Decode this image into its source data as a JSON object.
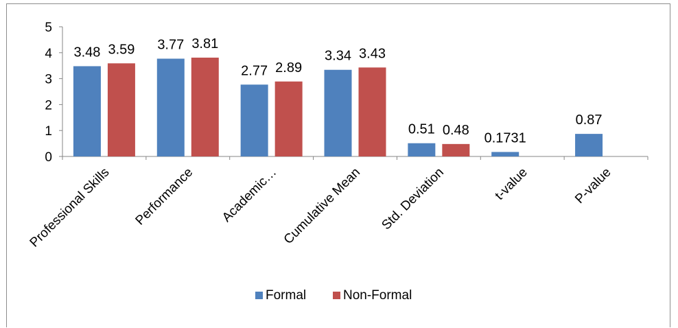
{
  "chart_data": {
    "type": "bar",
    "title": "",
    "xlabel": "",
    "ylabel": "",
    "ylim": [
      0,
      5
    ],
    "yticks": [
      0,
      1,
      2,
      3,
      4,
      5
    ],
    "ytick_labels": [
      "0",
      "1",
      "2",
      "3",
      "4",
      "5"
    ],
    "grid": false,
    "legend_position": "bottom",
    "categories": [
      "Professional Skills",
      "Performance",
      "Academic…",
      "Cumulative Mean",
      "Std. Deviation",
      "t-value",
      "P-value"
    ],
    "series": [
      {
        "name": "Formal",
        "color": "#4f81bd",
        "values": [
          3.48,
          3.77,
          2.77,
          3.34,
          0.51,
          0.1731,
          0.87
        ],
        "labels": [
          "3.48",
          "3.77",
          "2.77",
          "3.34",
          "0.51",
          "0.1731",
          "0.87"
        ]
      },
      {
        "name": "Non-Formal",
        "color": "#c0504d",
        "values": [
          3.59,
          3.81,
          2.89,
          3.43,
          0.48,
          null,
          null
        ],
        "labels": [
          "3.59",
          "3.81",
          "2.89",
          "3.43",
          "0.48",
          null,
          null
        ]
      }
    ]
  }
}
